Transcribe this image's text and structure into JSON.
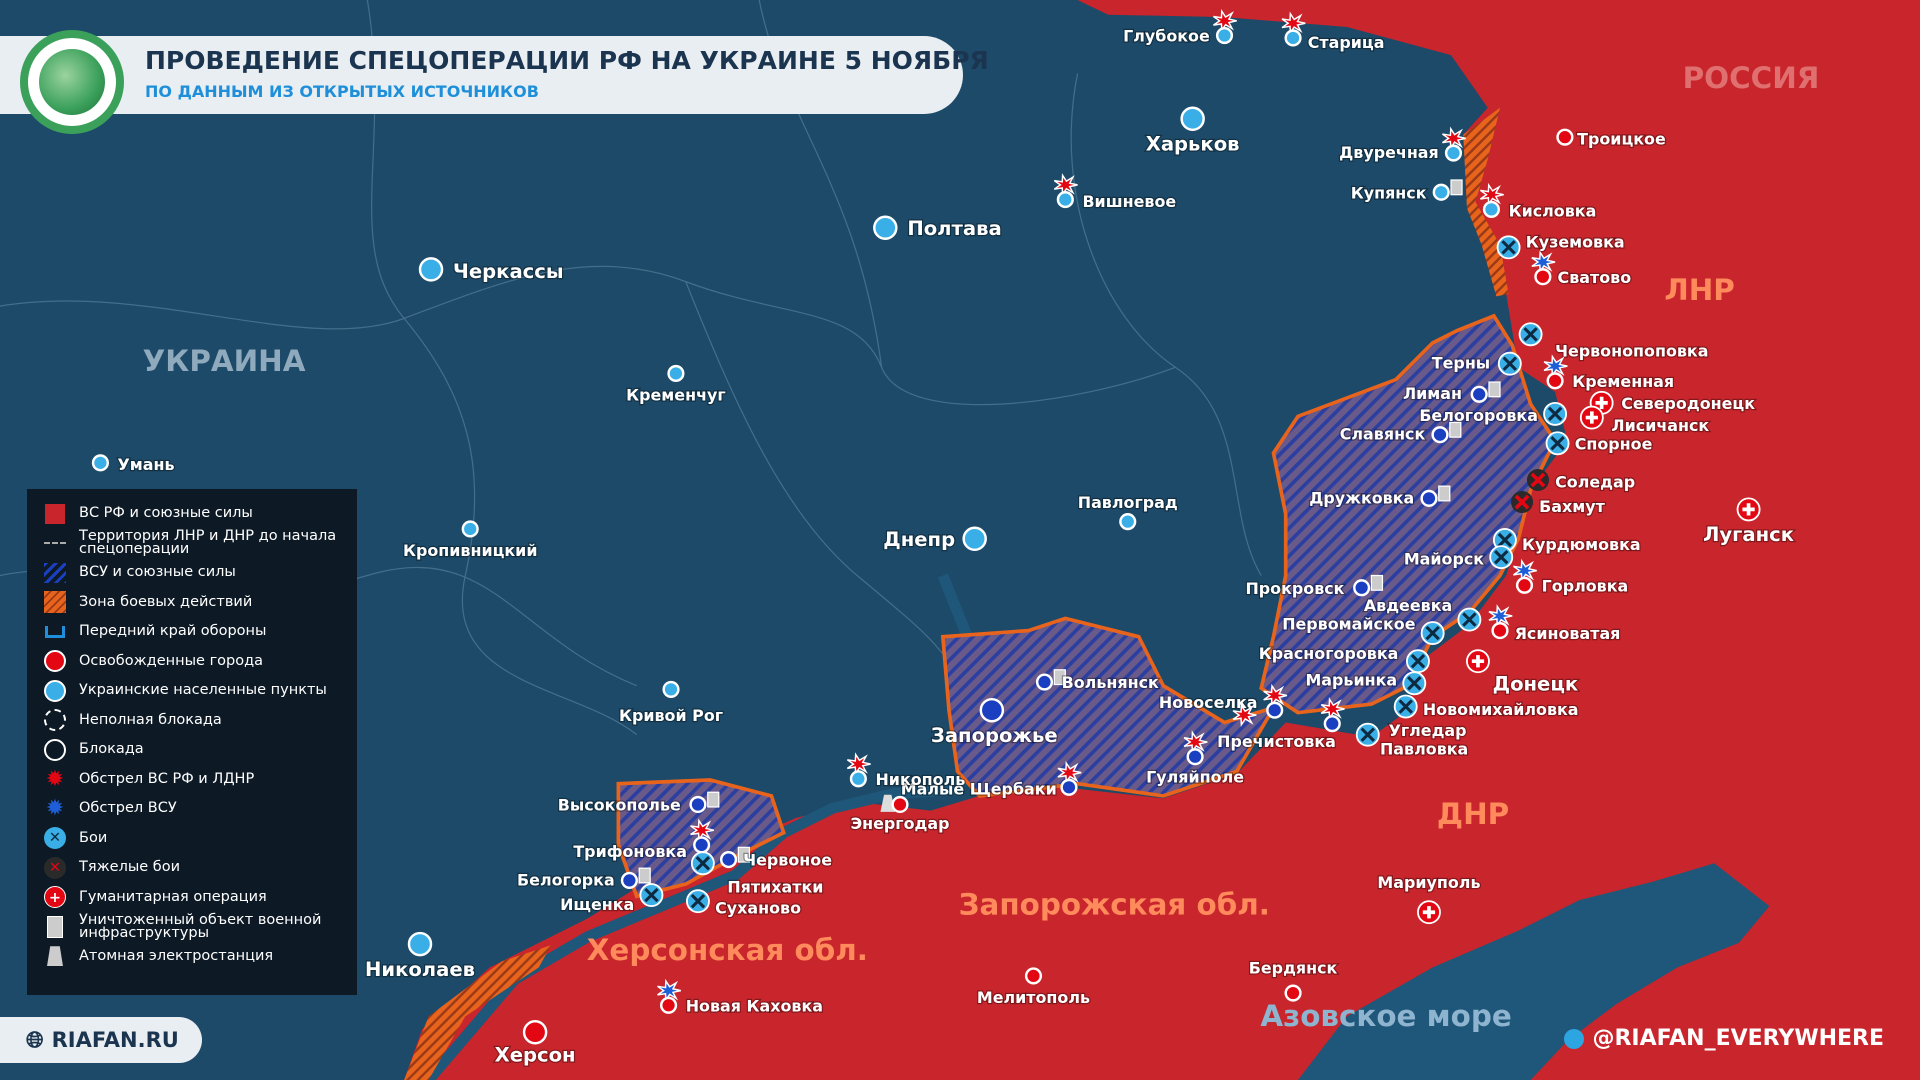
{
  "header": {
    "title": "ПРОВЕДЕНИЕ СПЕЦОПЕРАЦИИ РФ НА УКРАИНЕ 5 НОЯБРЯ",
    "subtitle": "ПО ДАННЫМ ИЗ ОТКРЫТЫХ ИСТОЧНИКОВ"
  },
  "colors": {
    "russia_controlled": "#c9252c",
    "ukraine_background": "#1d4a68",
    "frontline": "#e8641c",
    "ukraine_city": "#3aaee6",
    "liberated_city": "#e30613",
    "accent": "#1e8fd8"
  },
  "regions": [
    {
      "name": "РОССИЯ",
      "color": "#e07070"
    },
    {
      "name": "УКРАИНА",
      "color": "#8fa9bd"
    },
    {
      "name": "ЛНР",
      "color": "#ff8a5c"
    },
    {
      "name": "ДНР",
      "color": "#ff8a5c"
    },
    {
      "name": "Запорожская обл.",
      "color": "#ff8a5c"
    },
    {
      "name": "Херсонская обл.",
      "color": "#ff8a5c"
    },
    {
      "name": "Азовское море",
      "color": "#8fb4cf"
    }
  ],
  "legend": [
    {
      "label": "ВС РФ и союзные силы",
      "icon": "red-square"
    },
    {
      "label": "Территория ЛНР и ДНР до начала спецоперации",
      "icon": "dashed-line"
    },
    {
      "label": "ВСУ и союзные силы",
      "icon": "blue-hatch"
    },
    {
      "label": "Зона боевых действий",
      "icon": "orange-hatch"
    },
    {
      "label": "Передний край обороны",
      "icon": "defense-line"
    },
    {
      "label": "Освобожденные города",
      "icon": "red-dot"
    },
    {
      "label": "Украинские населенные пункты",
      "icon": "blue-dot"
    },
    {
      "label": "Неполная блокада",
      "icon": "dashed-circle"
    },
    {
      "label": "Блокада",
      "icon": "circle"
    },
    {
      "label": "Обстрел ВС РФ и ЛДНР",
      "icon": "red-burst"
    },
    {
      "label": "Обстрел ВСУ",
      "icon": "blue-burst"
    },
    {
      "label": "Бои",
      "icon": "battle"
    },
    {
      "label": "Тяжелые бои",
      "icon": "heavy-battle"
    },
    {
      "label": "Гуманитарная операция",
      "icon": "humanitarian"
    },
    {
      "label": "Уничтоженный объект военной инфраструктуры",
      "icon": "destroyed-object"
    },
    {
      "label": "Атомная электростанция",
      "icon": "nuclear-plant"
    }
  ],
  "cities": [
    {
      "name": "Глубокое",
      "type": "ukr",
      "marker": "red-burst"
    },
    {
      "name": "Старица",
      "type": "ukr",
      "marker": "red-burst"
    },
    {
      "name": "Харьков",
      "type": "ukr-big"
    },
    {
      "name": "Двуречная",
      "type": "ukr",
      "marker": "red-burst"
    },
    {
      "name": "Троицкое",
      "type": "liberated"
    },
    {
      "name": "Купянск",
      "type": "ukr",
      "marker": "destroyed-object"
    },
    {
      "name": "Вишневое",
      "type": "ukr",
      "marker": "red-burst"
    },
    {
      "name": "Полтава",
      "type": "ukr-big"
    },
    {
      "name": "Кисловка",
      "type": "ukr",
      "marker": "red-burst"
    },
    {
      "name": "Куземовка",
      "type": "battle"
    },
    {
      "name": "Сватово",
      "type": "liberated",
      "marker": "blue-burst"
    },
    {
      "name": "Черкассы",
      "type": "ukr-big"
    },
    {
      "name": "Кременчуг",
      "type": "ukr"
    },
    {
      "name": "Червонопоповка",
      "type": "battle"
    },
    {
      "name": "Терны",
      "type": "battle"
    },
    {
      "name": "Кременная",
      "type": "liberated",
      "marker": "blue-burst"
    },
    {
      "name": "Лиман",
      "type": "ukr-front",
      "marker": "destroyed-object"
    },
    {
      "name": "Северодонецк",
      "type": "humanitarian"
    },
    {
      "name": "Белогоровка",
      "type": "battle"
    },
    {
      "name": "Лисичанск",
      "type": "humanitarian"
    },
    {
      "name": "Славянск",
      "type": "ukr-front",
      "marker": "destroyed-object"
    },
    {
      "name": "Спорное",
      "type": "battle"
    },
    {
      "name": "Умань",
      "type": "ukr"
    },
    {
      "name": "Соледар",
      "type": "heavy-battle"
    },
    {
      "name": "Бахмут",
      "type": "heavy-battle"
    },
    {
      "name": "Павлоград",
      "type": "ukr"
    },
    {
      "name": "Дружковка",
      "type": "ukr-front",
      "marker": "destroyed-object"
    },
    {
      "name": "Луганск",
      "type": "humanitarian"
    },
    {
      "name": "Кропивницкий",
      "type": "ukr"
    },
    {
      "name": "Днепр",
      "type": "ukr-big"
    },
    {
      "name": "Курдюмовка",
      "type": "battle"
    },
    {
      "name": "Майорск",
      "type": "battle"
    },
    {
      "name": "Горловка",
      "type": "liberated",
      "marker": "blue-burst"
    },
    {
      "name": "Прокровск",
      "type": "ukr-front",
      "marker": "destroyed-object"
    },
    {
      "name": "Авдеевка",
      "type": "battle"
    },
    {
      "name": "Первомайское",
      "type": "battle"
    },
    {
      "name": "Ясиноватая",
      "type": "liberated",
      "marker": "blue-burst"
    },
    {
      "name": "Красногоровка",
      "type": "battle"
    },
    {
      "name": "Донецк",
      "type": "humanitarian"
    },
    {
      "name": "Вольнянск",
      "type": "ukr-front",
      "marker": "destroyed-object"
    },
    {
      "name": "Марьинка",
      "type": "battle"
    },
    {
      "name": "Новоселка",
      "type": "ukr-front",
      "marker": "red-burst"
    },
    {
      "name": "Кривой Рог",
      "type": "ukr"
    },
    {
      "name": "Новомихайловка",
      "type": "battle"
    },
    {
      "name": "Запорожье",
      "type": "ukr-front-big"
    },
    {
      "name": "Угледар",
      "type": "ukr-front",
      "marker": "red-burst"
    },
    {
      "name": "Павловка",
      "type": "battle"
    },
    {
      "name": "Пречистовка",
      "type": "label",
      "marker": "red-burst"
    },
    {
      "name": "Гуляйполе",
      "type": "ukr-front",
      "marker": "red-burst"
    },
    {
      "name": "Малые Щербаки",
      "type": "ukr-front",
      "marker": "red-burst"
    },
    {
      "name": "Никополь",
      "type": "ukr",
      "marker": "red-burst"
    },
    {
      "name": "Энергодар",
      "type": "liberated",
      "marker": "nuclear-plant"
    },
    {
      "name": "Высокополье",
      "type": "ukr-front",
      "marker": "destroyed-object"
    },
    {
      "name": "Трифоновка",
      "type": "ukr-front",
      "marker": "red-burst"
    },
    {
      "name": "Червоное",
      "type": "ukr-front",
      "marker": "destroyed-object"
    },
    {
      "name": "Белогорка",
      "type": "ukr-front",
      "marker": "destroyed-object"
    },
    {
      "name": "Пятихатки",
      "type": "battle"
    },
    {
      "name": "Ищенка",
      "type": "battle"
    },
    {
      "name": "Суханово",
      "type": "battle"
    },
    {
      "name": "Мариуполь",
      "type": "humanitarian"
    },
    {
      "name": "Николаев",
      "type": "ukr-big"
    },
    {
      "name": "Бердянск",
      "type": "liberated"
    },
    {
      "name": "Мелитополь",
      "type": "liberated"
    },
    {
      "name": "Новая Каховка",
      "type": "liberated",
      "marker": "blue-burst"
    },
    {
      "name": "Херсон",
      "type": "liberated-big"
    }
  ],
  "footer": {
    "site": "RIAFAN.RU",
    "social": "@RIAFAN_EVERYWHERE"
  }
}
